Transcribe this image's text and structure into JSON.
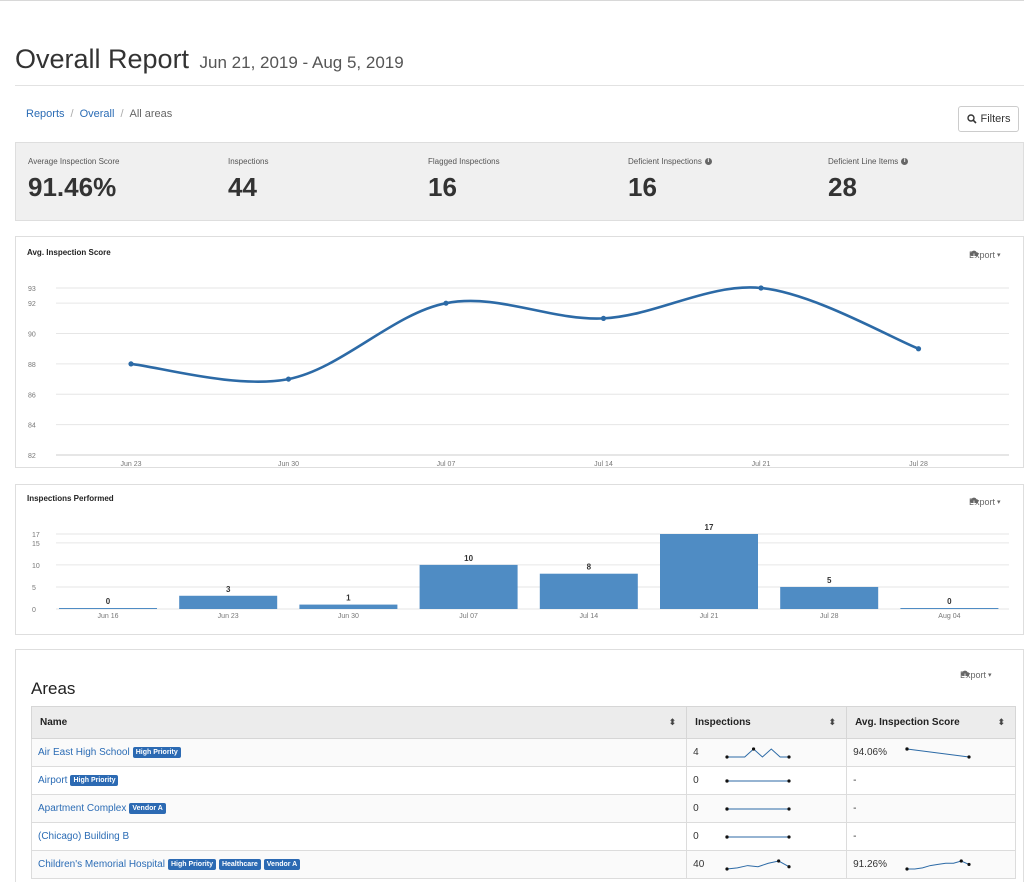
{
  "page": {
    "title": "Overall Report",
    "date_range": "Jun 21, 2019 - Aug 5, 2019"
  },
  "breadcrumb": [
    "Reports",
    "Overall",
    "All areas"
  ],
  "filters_label": "Filters",
  "stats": [
    {
      "label": "Average Inspection Score",
      "value": "91.46%",
      "info": false
    },
    {
      "label": "Inspections",
      "value": "44",
      "info": false
    },
    {
      "label": "Flagged Inspections",
      "value": "16",
      "info": false
    },
    {
      "label": "Deficient Inspections",
      "value": "16",
      "info": true
    },
    {
      "label": "Deficient Line Items",
      "value": "28",
      "info": true
    }
  ],
  "export_label": "Export",
  "chart_data": [
    {
      "type": "line",
      "title": "Avg. Inspection Score",
      "x": [
        "Jun 23",
        "Jun 30",
        "Jul 07",
        "Jul 14",
        "Jul 21",
        "Jul 28"
      ],
      "series": [
        {
          "values": [
            88,
            87,
            92,
            91,
            93,
            89
          ]
        }
      ],
      "yticks": [
        82,
        84,
        86,
        88,
        90,
        92,
        93
      ],
      "ylim": [
        82,
        93
      ],
      "grid": true,
      "color": "#2c6aa6"
    },
    {
      "type": "bar",
      "title": "Inspections Performed",
      "categories": [
        "Jun 16",
        "Jun 23",
        "Jun 30",
        "Jul 07",
        "Jul 14",
        "Jul 21",
        "Jul 28",
        "Aug 04"
      ],
      "values": [
        0,
        3,
        1,
        10,
        8,
        17,
        5,
        0
      ],
      "yticks": [
        0,
        5,
        10,
        15,
        17
      ],
      "ylim": [
        0,
        17
      ],
      "grid": true,
      "color": "#4f8cc4"
    }
  ],
  "areas": {
    "title": "Areas",
    "columns": [
      "Name",
      "Inspections",
      "Avg. Inspection Score"
    ],
    "rows": [
      {
        "name": "Air East High School",
        "tags": [
          "High Priority"
        ],
        "inspections": "4",
        "score": "94.06%",
        "spark_insp": [
          0,
          0,
          0,
          1,
          0,
          1,
          0,
          0
        ],
        "spark_score": [
          94.5,
          93.6
        ]
      },
      {
        "name": "Airport",
        "tags": [
          "High Priority"
        ],
        "inspections": "0",
        "score": "-",
        "spark_insp": [
          0,
          0
        ],
        "spark_score": []
      },
      {
        "name": "Apartment Complex",
        "tags": [
          "Vendor A"
        ],
        "inspections": "0",
        "score": "-",
        "spark_insp": [
          0,
          0
        ],
        "spark_score": []
      },
      {
        "name": "(Chicago) Building B",
        "tags": [],
        "inspections": "0",
        "score": "-",
        "spark_insp": [
          0,
          0
        ],
        "spark_score": []
      },
      {
        "name": "Children's Memorial Hospital",
        "tags": [
          "High Priority",
          "Healthcare",
          "Vendor A"
        ],
        "inspections": "40",
        "score": "91.26%",
        "spark_insp": [
          2,
          2.2,
          2.6,
          2.4,
          3,
          3.4,
          2.4
        ],
        "spark_score": [
          89,
          89,
          89.5,
          90.5,
          91,
          91.5,
          91.5,
          92.5,
          91
        ]
      }
    ]
  },
  "colors": {
    "link": "#2b6cb5",
    "tag": "#2c6ab3",
    "line": "#2c6aa6",
    "bar": "#4f8cc4"
  },
  "icons": {
    "filters": "search-icon",
    "export": "cloud-download-icon",
    "info": "info-icon",
    "sort": "sort-icon"
  }
}
